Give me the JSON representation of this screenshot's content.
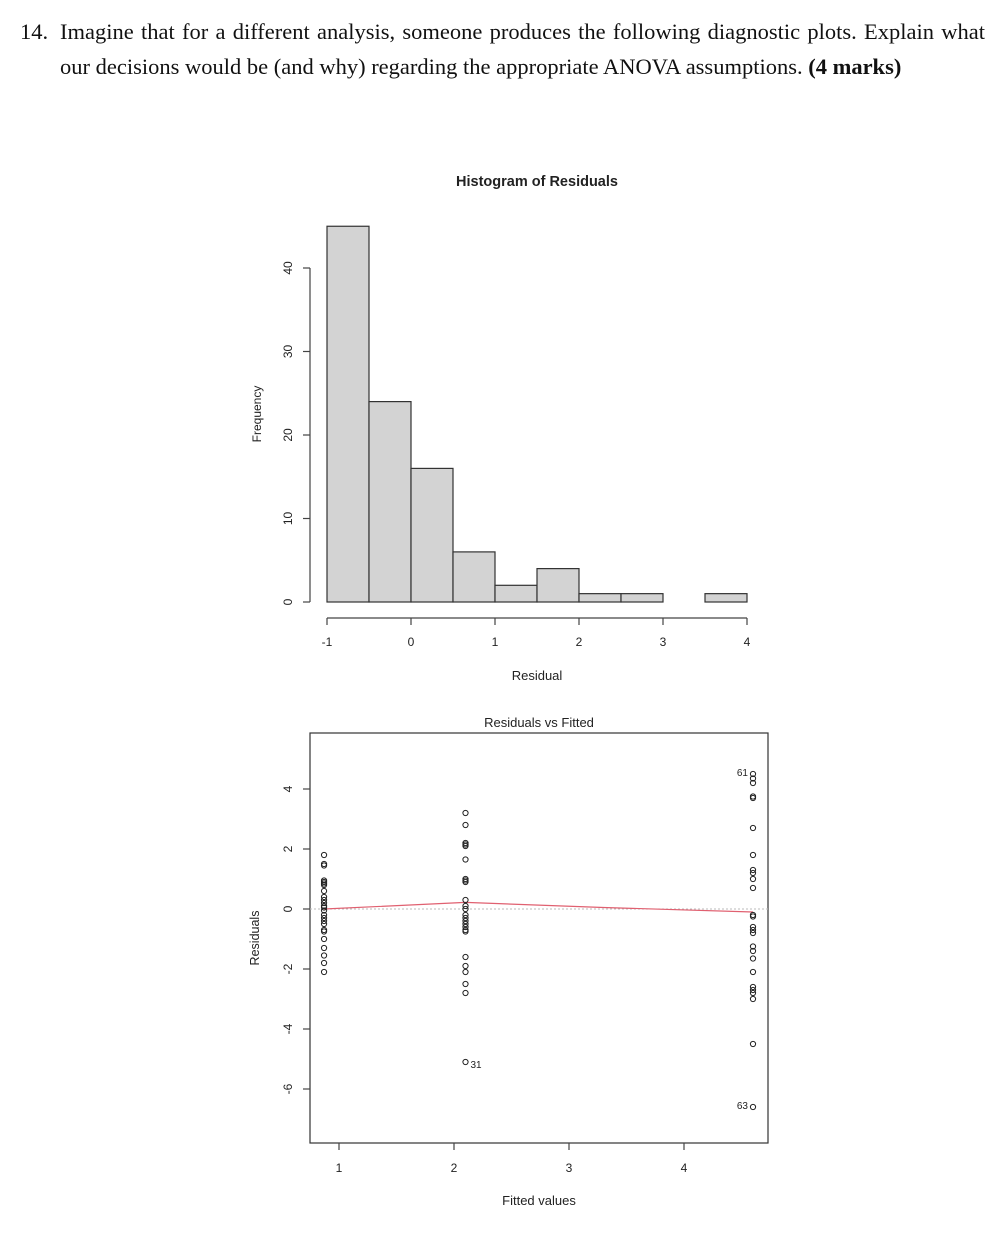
{
  "question": {
    "number": "14.",
    "text": "Imagine that for a different analysis, someone produces the following diagnostic plots. Explain what our decisions would be (and why) regarding the appropriate ANOVA assumptions.",
    "marks": "(4 marks)"
  },
  "chart_data": [
    {
      "type": "bar",
      "title": "Histogram of Residuals",
      "xlabel": "Residual",
      "ylabel": "Frequency",
      "bin_edges": [
        -1,
        -0.5,
        0,
        0.5,
        1,
        1.5,
        2,
        2.5,
        3,
        3.5,
        4
      ],
      "values": [
        45,
        24,
        16,
        6,
        2,
        4,
        1,
        1,
        0,
        1
      ],
      "xticks": [
        "-1",
        "0",
        "1",
        "2",
        "3",
        "4"
      ],
      "yticks": [
        "0",
        "10",
        "20",
        "30",
        "40"
      ],
      "xlim": [
        -1,
        4
      ],
      "ylim": [
        0,
        45
      ],
      "bar_color": "#d3d3d3",
      "grid": false
    },
    {
      "type": "scatter",
      "title": "Residuals vs Fitted",
      "xlabel": "Fitted values",
      "ylabel": "Residuals",
      "xticks": [
        "1",
        "2",
        "3",
        "4"
      ],
      "yticks": [
        "-6",
        "-4",
        "-2",
        "0",
        "2",
        "4"
      ],
      "xlim": [
        0.6,
        4.8
      ],
      "ylim": [
        -7.8,
        5.9
      ],
      "groups": [
        {
          "fitted": 0.87,
          "residuals": [
            1.8,
            1.5,
            1.45,
            0.95,
            0.9,
            0.85,
            0.8,
            0.6,
            0.4,
            0.3,
            0.2,
            0.1,
            0.05,
            -0.05,
            -0.2,
            -0.3,
            -0.4,
            -0.5,
            -0.7,
            -0.75,
            -1.0,
            -1.3,
            -1.55,
            -1.8,
            -2.1
          ]
        },
        {
          "fitted": 2.1,
          "residuals": [
            3.2,
            2.8,
            2.2,
            2.15,
            2.1,
            1.65,
            1.0,
            0.95,
            0.9,
            0.3,
            0.1,
            0.0,
            -0.2,
            -0.3,
            -0.4,
            -0.5,
            -0.6,
            -0.7,
            -0.75,
            -1.6,
            -1.9,
            -2.1,
            -2.5,
            -2.8,
            -5.1
          ]
        },
        {
          "fitted": 4.6,
          "residuals": [
            4.5,
            4.35,
            4.2,
            3.75,
            3.7,
            2.7,
            1.8,
            1.3,
            1.2,
            1.0,
            0.7,
            -0.25,
            -0.2,
            -0.6,
            -0.7,
            -0.8,
            -1.25,
            -1.4,
            -1.65,
            -2.1,
            -2.6,
            -2.7,
            -2.8,
            -3.0,
            -4.5,
            -6.6
          ]
        }
      ],
      "labeled_points": [
        {
          "label": "61",
          "fitted": 4.6,
          "residual": 4.5
        },
        {
          "label": "31",
          "fitted": 2.1,
          "residual": -5.1
        },
        {
          "label": "63",
          "fitted": 4.6,
          "residual": -6.6
        }
      ],
      "smoother_color": "#e06070",
      "smoother": [
        [
          0.87,
          0.0
        ],
        [
          2.1,
          0.22
        ],
        [
          3.3,
          0.05
        ],
        [
          4.6,
          -0.1
        ]
      ],
      "reference_line": 0
    }
  ]
}
